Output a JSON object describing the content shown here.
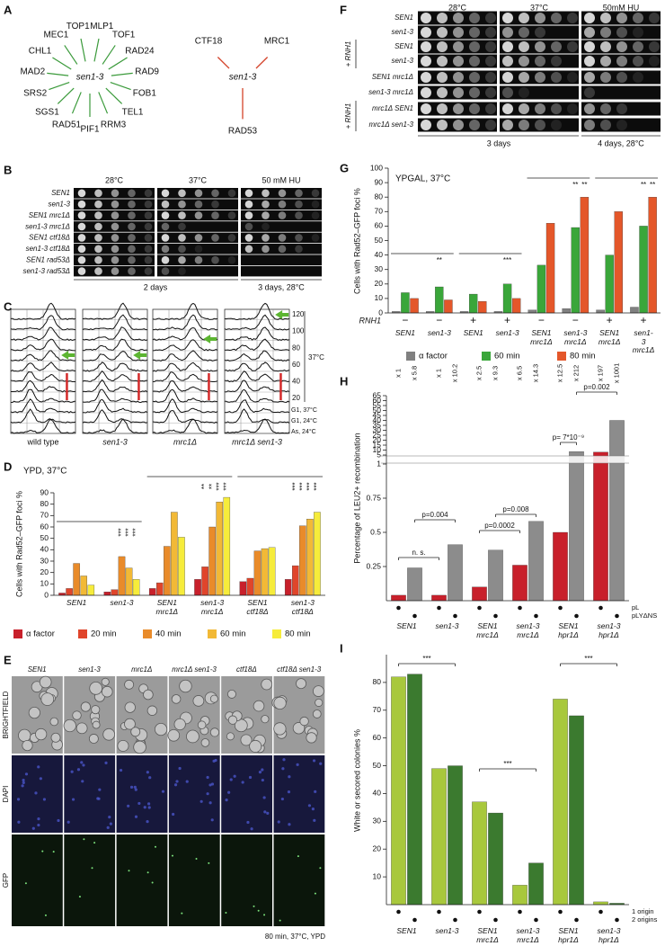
{
  "panel_labels": [
    "A",
    "B",
    "C",
    "D",
    "E",
    "F",
    "G",
    "H",
    "I"
  ],
  "panel_a": {
    "hub": "sen1-3",
    "genes": [
      "MLP1",
      "TOF1",
      "RAD24",
      "RAD9",
      "FOB1",
      "TEL1",
      "RRM3",
      "PIF1",
      "RAD51",
      "SGS1",
      "SRS2",
      "MAD2",
      "CHL1",
      "MEC1",
      "TOP1"
    ],
    "hub2": "sen1-3",
    "partners": [
      "CTF18",
      "MRC1",
      "RAD53"
    ]
  },
  "panel_b": {
    "conditions": [
      "28°C",
      "37°C",
      "50 mM HU"
    ],
    "strains": [
      "SEN1",
      "sen1-3",
      "SEN1 mrc1Δ",
      "sen1-3 mrc1Δ",
      "SEN1 ctf18Δ",
      "sen1-3 ctf18Δ",
      "SEN1 rad53Δ",
      "sen1-3 rad53Δ"
    ],
    "footers": [
      "2 days",
      "3 days, 28°C"
    ]
  },
  "panel_c": {
    "strains": [
      "wild type",
      "sen1-3",
      "mrc1Δ",
      "mrc1Δ sen1-3"
    ],
    "times": [
      120,
      100,
      80,
      60,
      40,
      20
    ],
    "temperature": "37°C",
    "references": [
      "G1, 37°C",
      "G1, 24°C",
      "As, 24°C"
    ]
  },
  "panel_e": {
    "strains": [
      "SEN1",
      "sen1-3",
      "mrc1Δ",
      "mrc1Δ sen1-3",
      "ctf18Δ",
      "ctf18Δ sen1-3"
    ],
    "channels": [
      "BRIGHTFIELD",
      "DAPI",
      "GFP"
    ],
    "footer": "80 min, 37°C, YPD"
  },
  "panel_f": {
    "conditions": [
      "28°C",
      "37°C",
      "50mM HU"
    ],
    "strains": [
      "SEN1",
      "sen1-3",
      "SEN1",
      "sen1-3",
      "SEN1 mrc1Δ",
      "sen1-3 mrc1Δ",
      "mrc1Δ SEN1",
      "mrc1Δ sen1-3"
    ],
    "rnh1_labels": [
      "+ RNH1",
      "+ RNH1"
    ],
    "footers": [
      "3 days",
      "4 days, 28°C"
    ]
  },
  "chart_data": [
    {
      "type": "bar",
      "title": "YPD, 37°C",
      "y_label": "Cells with  Rad52–GFP foci %",
      "categories": [
        "SEN1",
        "sen1-3",
        "SEN1\nmrc1Δ",
        "sen1-3\nmrc1Δ",
        "SEN1\nctf18Δ",
        "sen1-3\nctf18Δ"
      ],
      "series": [
        {
          "name": "α factor",
          "color": "#c8202b",
          "values": [
            2,
            3,
            6,
            14,
            12,
            14
          ]
        },
        {
          "name": "20 min",
          "color": "#e0452b",
          "values": [
            6,
            5,
            11,
            25,
            15,
            26
          ]
        },
        {
          "name": "40 min",
          "color": "#e98b2a",
          "values": [
            28,
            34,
            43,
            60,
            39,
            61
          ]
        },
        {
          "name": "60 min",
          "color": "#f2b936",
          "values": [
            17,
            24,
            73,
            82,
            41,
            67
          ]
        },
        {
          "name": "80 min",
          "color": "#f6ec3b",
          "values": [
            9,
            14,
            51,
            86,
            42,
            73
          ]
        }
      ],
      "ylim": [
        0,
        90
      ],
      "yticks": [
        0,
        10,
        20,
        30,
        40,
        50,
        60,
        70,
        80,
        90
      ],
      "legend": "bottom",
      "annotations": [
        "***",
        "***",
        "***",
        "**",
        "**",
        "***",
        "***",
        "***",
        "***",
        "***",
        "***"
      ]
    },
    {
      "type": "bar",
      "title": "YPGAL, 37°C",
      "y_label": "Cells with  Rad52–GFP foci %",
      "categories": [
        "SEN1",
        "sen1-3",
        "SEN1",
        "sen1-3",
        "SEN1\nmrc1Δ",
        "sen1-3\nmrc1Δ",
        "SEN1\nmrc1Δ",
        "sen1-3\nmrc1Δ"
      ],
      "row_header": {
        "name": "RNH1",
        "labels": [
          "−",
          "−",
          "+",
          "+",
          "−",
          "−",
          "+",
          "+"
        ]
      },
      "series": [
        {
          "name": "α factor",
          "color": "#808080",
          "values": [
            1,
            1,
            1,
            1,
            2,
            3,
            2,
            4
          ]
        },
        {
          "name": "60 min",
          "color": "#3aa63a",
          "values": [
            14,
            18,
            13,
            20,
            33,
            59,
            40,
            60
          ]
        },
        {
          "name": "80 min",
          "color": "#e4572a",
          "values": [
            10,
            9,
            8,
            10,
            62,
            80,
            70,
            80
          ]
        }
      ],
      "ylim": [
        0,
        100
      ],
      "yticks": [
        0,
        10,
        20,
        30,
        40,
        50,
        60,
        70,
        80,
        90,
        100
      ],
      "legend": "bottom",
      "annotations": [
        "**",
        "***",
        "**",
        "**",
        "**",
        "**"
      ]
    },
    {
      "type": "bar",
      "y_label": "Percentage of LEU2+ recombination",
      "categories": [
        "SEN1",
        "sen1-3",
        "SEN1\nmrc1Δ",
        "sen1-3\nmrc1Δ",
        "SEN1\nhpr1Δ",
        "sen1-3\nhpr1Δ"
      ],
      "series": [
        {
          "name": "pL",
          "color": "#c8202b",
          "values": [
            0.04,
            0.04,
            0.1,
            0.26,
            0.5,
            7.9
          ]
        },
        {
          "name": "pLYΔNS",
          "color": "#8c8c8c",
          "values": [
            0.24,
            0.41,
            0.37,
            0.58,
            8.5,
            40
          ]
        }
      ],
      "ylim": [
        0,
        65
      ],
      "axis_break": [
        1,
        5
      ],
      "yticks": [
        0.25,
        0.5,
        0.75,
        1,
        5,
        10,
        15,
        20,
        25,
        30,
        35,
        40,
        45,
        50,
        55,
        60,
        65
      ],
      "legend": "right",
      "fold_labels": [
        "x 1",
        "x 5.8",
        "x 1",
        "x 10.2",
        "x 2.5",
        "x 9.3",
        "x 6.5",
        "x 14.3",
        "x 12.5",
        "x 212",
        "x 197",
        "x 1001"
      ],
      "annotations": [
        "n. s.",
        "p=0.004",
        "p=0.0002",
        "p=0.008",
        "p= 7*10⁻⁹",
        "p=0.002"
      ]
    },
    {
      "type": "bar",
      "y_label": "White or secored colonies %",
      "categories": [
        "SEN1",
        "sen1-3",
        "SEN1\nmrc1Δ",
        "sen1-3\nmrc1Δ",
        "SEN1\nhpr1Δ",
        "sen1-3\nhpr1Δ"
      ],
      "series": [
        {
          "name": "1 origin",
          "color": "#a8c83c",
          "values": [
            82,
            49,
            37,
            7,
            74,
            1
          ]
        },
        {
          "name": "2 origins",
          "color": "#3b7a2f",
          "values": [
            83,
            50,
            33,
            15,
            68,
            0.5
          ]
        }
      ],
      "ylim": [
        0,
        90
      ],
      "yticks": [
        10,
        20,
        30,
        40,
        50,
        60,
        70,
        80
      ],
      "legend": "right",
      "annotations": [
        "***",
        "***",
        "***"
      ]
    }
  ]
}
